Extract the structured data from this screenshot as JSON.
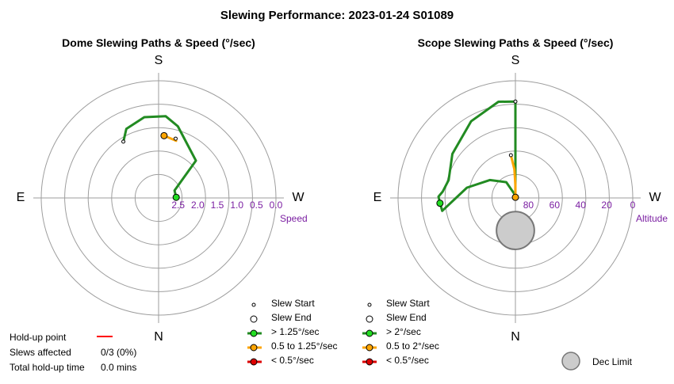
{
  "title": "Slewing Performance: 2023-01-24 S01089",
  "chart_data": [
    {
      "type": "polar",
      "title": "Dome Slewing Paths & Speed (°/sec)",
      "compass": {
        "top": "S",
        "bottom": "N",
        "left": "E",
        "right": "W"
      },
      "radial_axis": {
        "name": "Speed",
        "min": 0.0,
        "max": 3.0,
        "inverted": true,
        "ticks": [
          "0.0",
          "0.5",
          "1.0",
          "1.5",
          "2.0",
          "2.5"
        ],
        "tick_values": [
          0.0,
          0.5,
          1.0,
          1.5,
          2.0,
          2.5
        ]
      },
      "series": [
        {
          "category": "> 1.25°/sec",
          "color": "#228B22",
          "points": [
            [
              148,
              1.3
            ],
            [
              155,
              1.05
            ],
            [
              170,
              0.9
            ],
            [
              185,
              0.9
            ],
            [
              195,
              1.1
            ],
            [
              225,
              1.65
            ],
            [
              245,
              2.55
            ],
            [
              268,
              2.55
            ]
          ],
          "start_marker": [
            148,
            1.3
          ],
          "end_marker": [
            268,
            2.55
          ]
        },
        {
          "category": "0.5 to 1.25°/sec",
          "color": "#FFA500",
          "points": [
            [
              185,
              1.4
            ],
            [
              197,
              1.47
            ],
            [
              196,
              1.42
            ]
          ],
          "start_marker": [
            196,
            1.42
          ],
          "end_marker": [
            185,
            1.4
          ]
        }
      ]
    },
    {
      "type": "polar",
      "title": "Scope Slewing Paths & Speed (°/sec)",
      "compass": {
        "top": "S",
        "bottom": "N",
        "left": "E",
        "right": "W"
      },
      "radial_axis": {
        "name": "Altitude",
        "min": 90,
        "max": 0,
        "ticks": [
          "80",
          "60",
          "40",
          "20",
          "0"
        ],
        "tick_values": [
          80,
          60,
          40,
          20,
          0
        ]
      },
      "dec_limit": {
        "azimuth": 0,
        "altitude": 65,
        "radius_deg": 14.5
      },
      "series": [
        {
          "category": "> 2°/sec",
          "color": "#228B22",
          "points": [
            [
              178,
              88
            ],
            [
              180,
              70
            ],
            [
              180,
              48
            ],
            [
              180,
              16
            ],
            [
              170,
              15
            ],
            [
              150,
              22
            ],
            [
              125,
              31
            ],
            [
              105,
              37
            ],
            [
              95,
              34
            ],
            [
              91,
              31
            ],
            [
              86,
              32
            ],
            [
              80,
              33
            ],
            [
              102,
              52
            ],
            [
              125,
              66
            ],
            [
              150,
              76
            ],
            [
              178,
              88
            ]
          ],
          "start_marker": [
            180,
            16
          ],
          "end_marker": [
            86,
            32
          ]
        },
        {
          "category": "0.5 to 2°/sec",
          "color": "#FFA500",
          "points": [
            [
              174,
              57
            ],
            [
              178,
              68
            ],
            [
              180,
              80
            ],
            [
              180,
              88
            ],
            [
              180,
              89.5
            ]
          ],
          "start_marker": [
            174,
            57
          ],
          "end_marker": [
            180,
            89.5
          ]
        }
      ]
    }
  ],
  "legend": {
    "dome": {
      "slew_start": "Slew Start",
      "slew_end": "Slew End",
      "fast": "> 1.25°/sec",
      "medium": "0.5 to 1.25°/sec",
      "slow": "< 0.5°/sec"
    },
    "scope": {
      "slew_start": "Slew Start",
      "slew_end": "Slew End",
      "fast": "> 2°/sec",
      "medium": "0.5 to 2°/sec",
      "slow": "< 0.5°/sec",
      "dec_limit": "Dec Limit"
    },
    "colors": {
      "fast": "#228B22",
      "medium": "#FFA500",
      "slow": "#DD0000",
      "fast_dot": "#22DD22"
    }
  },
  "holdup": {
    "point_label": "Hold-up point",
    "slews_label": "Slews affected",
    "slews_value": "0/3 (0%)",
    "total_label": "Total hold-up time",
    "total_value": "0.0 mins",
    "line_color": "#FF0000"
  }
}
